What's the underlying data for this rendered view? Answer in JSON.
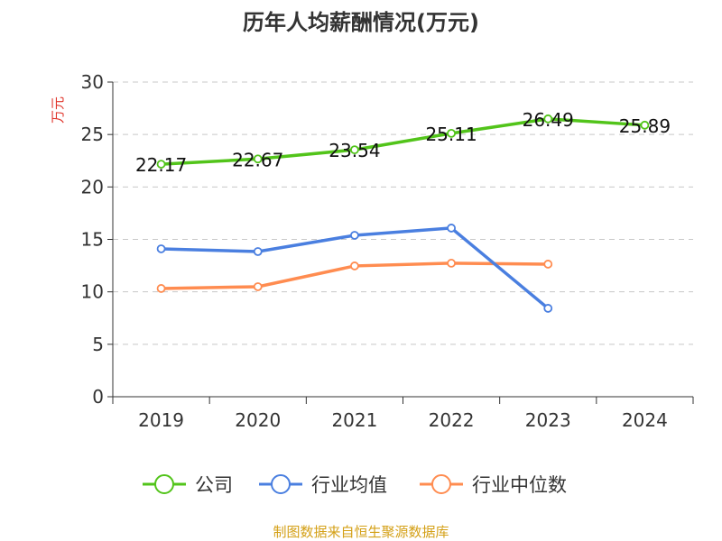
{
  "chart_data": {
    "type": "line",
    "title": "历年人均薪酬情况(万元)",
    "ylabel": "万元",
    "xlabel": "",
    "categories": [
      "2019",
      "2020",
      "2021",
      "2022",
      "2023",
      "2024"
    ],
    "ylim": [
      0,
      30
    ],
    "yticks": [
      0,
      5,
      10,
      15,
      20,
      25,
      30
    ],
    "grid": true,
    "legend_position": "bottom",
    "series": [
      {
        "name": "公司",
        "color": "#52c41a",
        "values": [
          22.17,
          22.67,
          23.54,
          25.11,
          26.49,
          25.89
        ],
        "labels": [
          "22.17",
          "22.67",
          "23.54",
          "25.11",
          "26.49",
          "25.89"
        ]
      },
      {
        "name": "行业均值",
        "color": "#4a7fe0",
        "values": [
          14.1,
          13.84,
          15.39,
          16.08,
          8.43,
          null
        ]
      },
      {
        "name": "行业中位数",
        "color": "#ff8c50",
        "values": [
          10.32,
          10.49,
          12.47,
          12.73,
          12.64,
          null
        ]
      }
    ]
  },
  "footer": {
    "source": "制图数据来自恒生聚源数据库"
  }
}
